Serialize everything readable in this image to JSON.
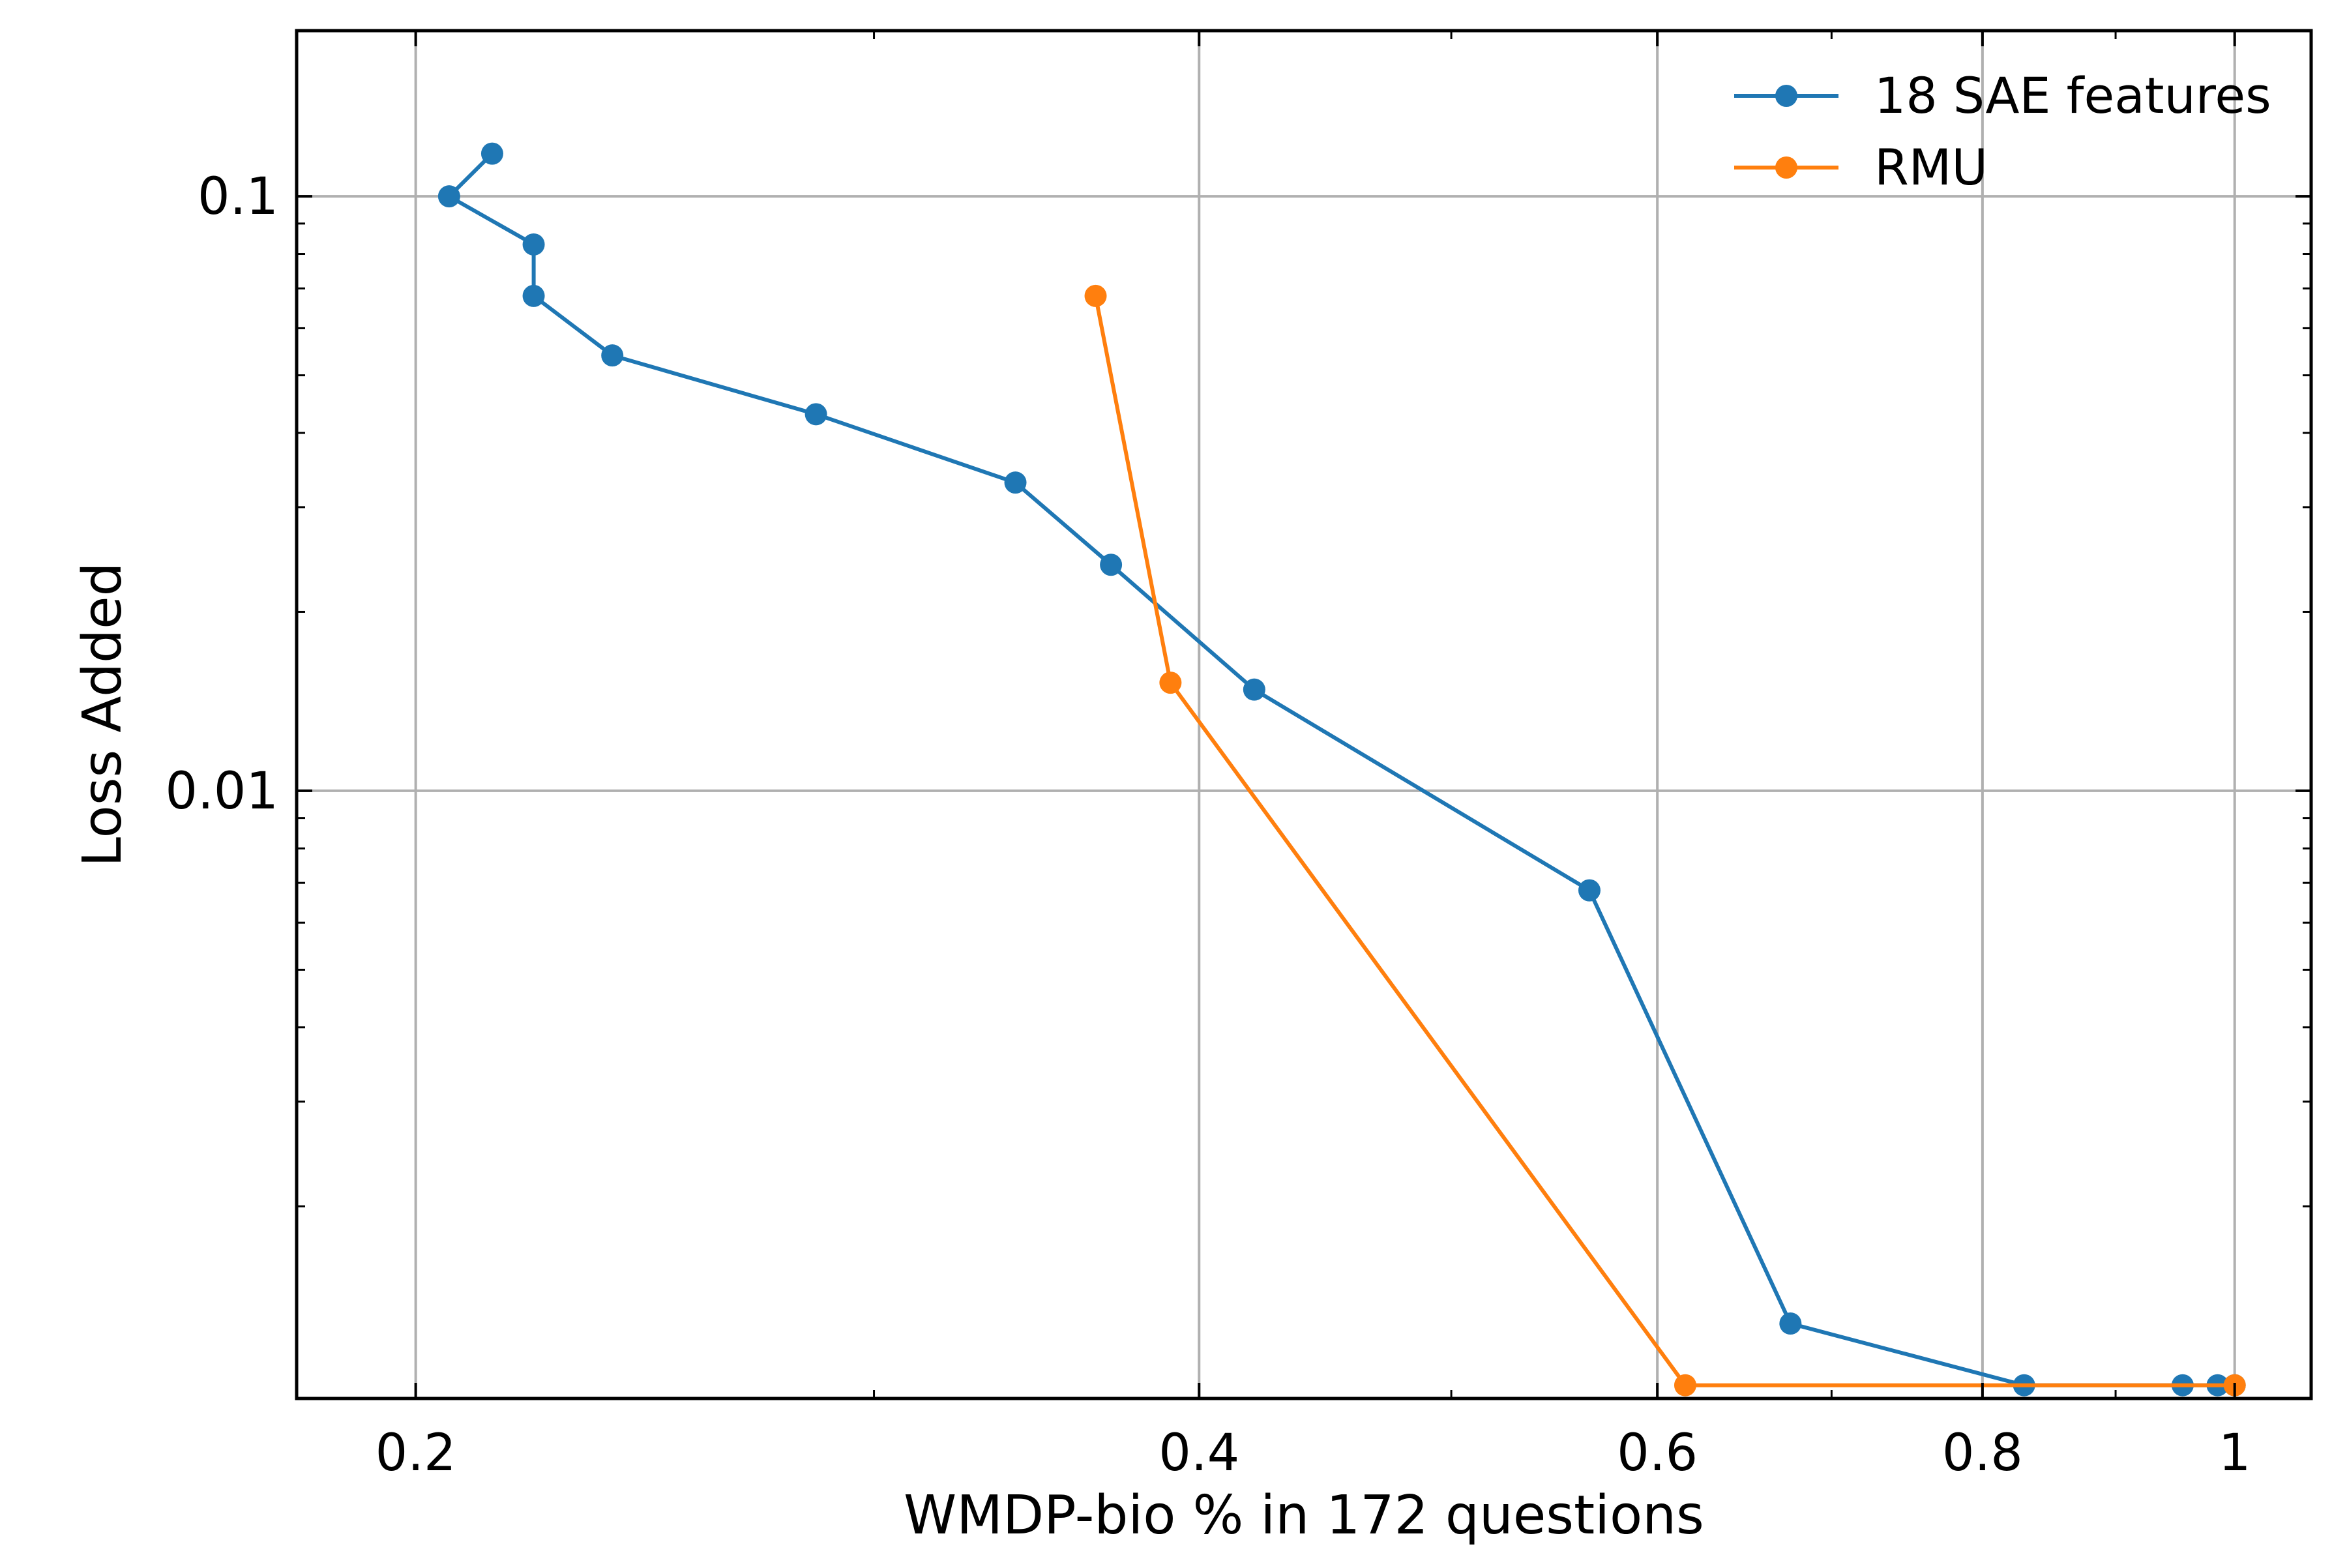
{
  "chart_data": {
    "type": "line",
    "xlabel": "WMDP-bio % in 172 questions",
    "ylabel": "Loss Added",
    "x_scale": "log",
    "y_scale": "log",
    "xlim": [
      0.18,
      1.07
    ],
    "ylim": [
      0.00095,
      0.19
    ],
    "x_ticks": [
      {
        "value": 0.2,
        "label": "0.2"
      },
      {
        "value": 0.4,
        "label": "0.4"
      },
      {
        "value": 0.6,
        "label": "0.6"
      },
      {
        "value": 0.8,
        "label": "0.8"
      },
      {
        "value": 1.0,
        "label": "1"
      }
    ],
    "y_ticks": [
      {
        "value": 0.01,
        "label": "0.01"
      },
      {
        "value": 0.1,
        "label": "0.1"
      }
    ],
    "grid": true,
    "legend_position": "top-right",
    "series": [
      {
        "name": "18 SAE features",
        "color": "#1f77b4",
        "points": [
          [
            0.214,
            0.118
          ],
          [
            0.206,
            0.1
          ],
          [
            0.222,
            0.083
          ],
          [
            0.222,
            0.068
          ],
          [
            0.238,
            0.054
          ],
          [
            0.285,
            0.043
          ],
          [
            0.34,
            0.033
          ],
          [
            0.37,
            0.024
          ],
          [
            0.42,
            0.0148
          ],
          [
            0.565,
            0.0068
          ],
          [
            0.675,
            0.00127
          ],
          [
            0.83,
            0.001
          ],
          [
            0.955,
            0.001
          ],
          [
            0.985,
            0.001
          ],
          [
            1.0,
            0.001
          ]
        ]
      },
      {
        "name": "RMU",
        "color": "#ff7f0e",
        "points": [
          [
            0.365,
            0.068
          ],
          [
            0.39,
            0.0152
          ],
          [
            0.615,
            0.001
          ],
          [
            1.0,
            0.001
          ]
        ]
      }
    ]
  }
}
